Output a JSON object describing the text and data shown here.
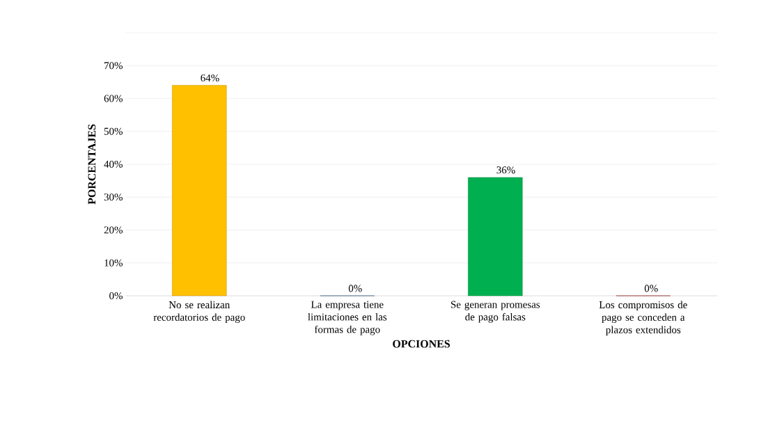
{
  "chart_data": {
    "type": "bar",
    "xlabel": "OPCIONES",
    "ylabel": "PORCENTAJES",
    "categories": [
      "No se realizan recordatorios de pago",
      "La empresa tiene limitaciones en las formas de pago",
      "Se generan promesas de pago falsas",
      "Los compromisos de pago se conceden a plazos extendidos"
    ],
    "values": [
      64,
      0,
      36,
      0
    ],
    "colors": [
      "#ffc000",
      "#1f5c99",
      "#00b050",
      "#c00000"
    ],
    "value_labels": [
      "64%",
      "0%",
      "36%",
      "0%"
    ],
    "ylim": [
      0,
      80
    ],
    "yticks": [
      {
        "value": 0,
        "label": "0%"
      },
      {
        "value": 10,
        "label": "10%"
      },
      {
        "value": 20,
        "label": "20%"
      },
      {
        "value": 30,
        "label": "30%"
      },
      {
        "value": 40,
        "label": "40%"
      },
      {
        "value": 50,
        "label": "50%"
      },
      {
        "value": 60,
        "label": "60%"
      },
      {
        "value": 70,
        "label": "70%"
      },
      {
        "value": 80,
        "label": null
      }
    ],
    "grid": "y"
  }
}
